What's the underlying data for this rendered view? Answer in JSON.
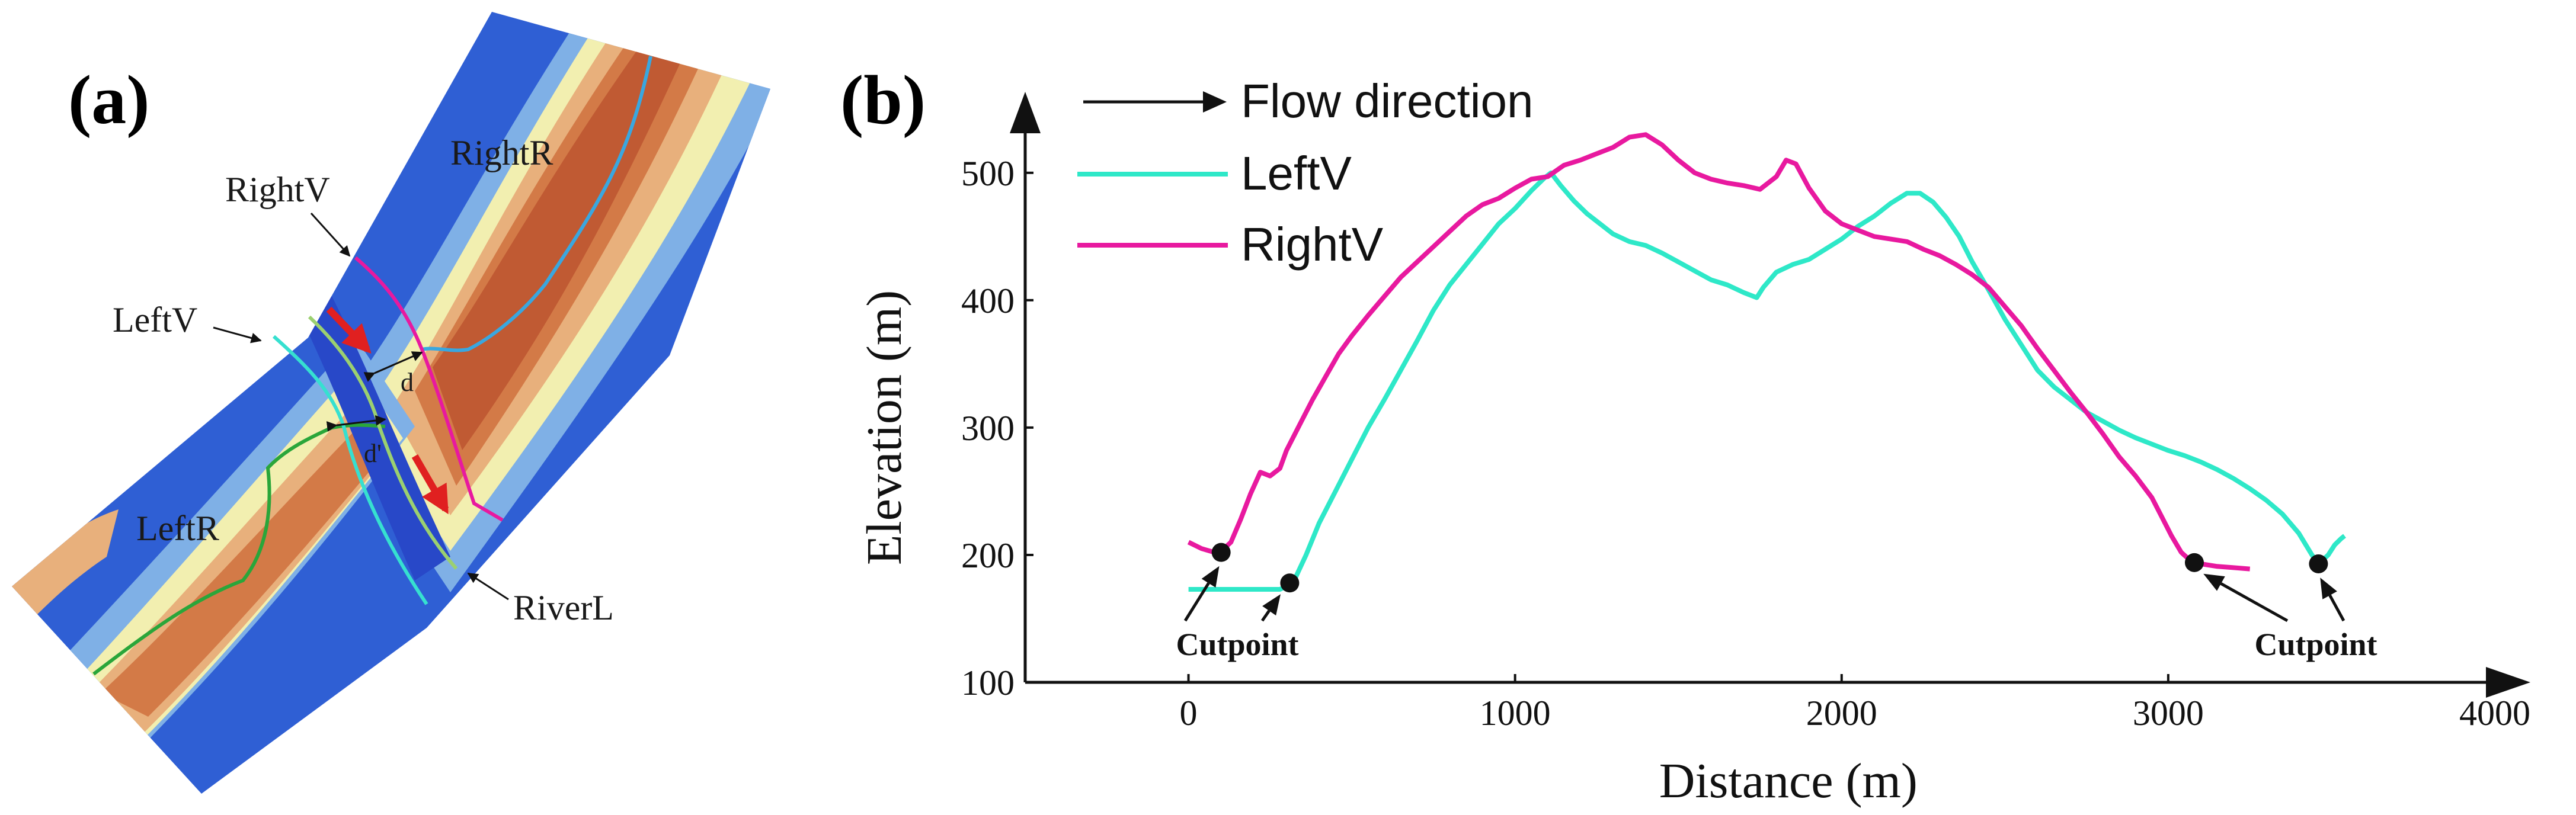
{
  "panel_a": {
    "label": "(a)",
    "map_labels": {
      "right_v": "RightV",
      "right_r": "RightR",
      "left_v": "LeftV",
      "left_r": "LeftR",
      "river_l": "RiverL",
      "d": "d",
      "d_prime": "d'"
    }
  },
  "panel_b": {
    "label": "(b)"
  },
  "chart_data": {
    "type": "line",
    "title": "",
    "xlabel": "Distance (m)",
    "ylabel": "Elevation (m)",
    "xlim": [
      -500,
      4000
    ],
    "ylim": [
      100,
      545
    ],
    "xticks": [
      0,
      1000,
      2000,
      3000,
      4000
    ],
    "yticks": [
      100,
      200,
      300,
      400,
      500
    ],
    "legend": {
      "flow_direction": "Flow direction",
      "placement": "top-left"
    },
    "series": [
      {
        "name": "LeftV",
        "color": "#2ee8c8",
        "points": [
          [
            0,
            173
          ],
          [
            100,
            173
          ],
          [
            200,
            173
          ],
          [
            280,
            173
          ],
          [
            320,
            178
          ],
          [
            360,
            200
          ],
          [
            400,
            225
          ],
          [
            450,
            250
          ],
          [
            500,
            275
          ],
          [
            550,
            300
          ],
          [
            600,
            322
          ],
          [
            650,
            345
          ],
          [
            700,
            368
          ],
          [
            750,
            392
          ],
          [
            800,
            412
          ],
          [
            850,
            428
          ],
          [
            900,
            444
          ],
          [
            950,
            460
          ],
          [
            1000,
            472
          ],
          [
            1050,
            486
          ],
          [
            1090,
            496
          ],
          [
            1110,
            500
          ],
          [
            1140,
            490
          ],
          [
            1180,
            478
          ],
          [
            1220,
            468
          ],
          [
            1260,
            460
          ],
          [
            1300,
            452
          ],
          [
            1350,
            446
          ],
          [
            1400,
            443
          ],
          [
            1450,
            437
          ],
          [
            1500,
            430
          ],
          [
            1550,
            423
          ],
          [
            1600,
            416
          ],
          [
            1650,
            412
          ],
          [
            1700,
            406
          ],
          [
            1740,
            402
          ],
          [
            1760,
            410
          ],
          [
            1800,
            422
          ],
          [
            1850,
            428
          ],
          [
            1900,
            432
          ],
          [
            1950,
            440
          ],
          [
            2000,
            448
          ],
          [
            2050,
            458
          ],
          [
            2100,
            466
          ],
          [
            2150,
            476
          ],
          [
            2200,
            484
          ],
          [
            2240,
            484
          ],
          [
            2280,
            477
          ],
          [
            2320,
            465
          ],
          [
            2360,
            450
          ],
          [
            2400,
            430
          ],
          [
            2450,
            408
          ],
          [
            2500,
            385
          ],
          [
            2550,
            365
          ],
          [
            2600,
            345
          ],
          [
            2650,
            332
          ],
          [
            2700,
            322
          ],
          [
            2750,
            312
          ],
          [
            2800,
            305
          ],
          [
            2850,
            298
          ],
          [
            2900,
            292
          ],
          [
            2950,
            287
          ],
          [
            3000,
            282
          ],
          [
            3050,
            278
          ],
          [
            3100,
            273
          ],
          [
            3150,
            267
          ],
          [
            3200,
            260
          ],
          [
            3250,
            252
          ],
          [
            3300,
            243
          ],
          [
            3350,
            232
          ],
          [
            3400,
            217
          ],
          [
            3440,
            200
          ],
          [
            3460,
            193
          ],
          [
            3490,
            200
          ],
          [
            3510,
            208
          ],
          [
            3530,
            213
          ],
          [
            3540,
            215
          ]
        ]
      },
      {
        "name": "RightV",
        "color": "#e8199f",
        "points": [
          [
            0,
            210
          ],
          [
            40,
            205
          ],
          [
            80,
            202
          ],
          [
            100,
            203
          ],
          [
            130,
            210
          ],
          [
            160,
            228
          ],
          [
            190,
            248
          ],
          [
            220,
            265
          ],
          [
            250,
            262
          ],
          [
            280,
            268
          ],
          [
            300,
            282
          ],
          [
            340,
            302
          ],
          [
            380,
            322
          ],
          [
            420,
            340
          ],
          [
            460,
            358
          ],
          [
            500,
            372
          ],
          [
            550,
            388
          ],
          [
            600,
            403
          ],
          [
            650,
            418
          ],
          [
            700,
            430
          ],
          [
            750,
            442
          ],
          [
            800,
            454
          ],
          [
            850,
            466
          ],
          [
            900,
            475
          ],
          [
            950,
            480
          ],
          [
            1000,
            488
          ],
          [
            1050,
            495
          ],
          [
            1100,
            497
          ],
          [
            1150,
            506
          ],
          [
            1200,
            510
          ],
          [
            1250,
            515
          ],
          [
            1300,
            520
          ],
          [
            1350,
            528
          ],
          [
            1400,
            530
          ],
          [
            1450,
            522
          ],
          [
            1500,
            510
          ],
          [
            1550,
            500
          ],
          [
            1600,
            495
          ],
          [
            1650,
            492
          ],
          [
            1700,
            490
          ],
          [
            1750,
            487
          ],
          [
            1800,
            497
          ],
          [
            1830,
            510
          ],
          [
            1860,
            507
          ],
          [
            1900,
            488
          ],
          [
            1950,
            470
          ],
          [
            2000,
            460
          ],
          [
            2050,
            455
          ],
          [
            2100,
            450
          ],
          [
            2150,
            448
          ],
          [
            2200,
            446
          ],
          [
            2250,
            440
          ],
          [
            2300,
            435
          ],
          [
            2350,
            428
          ],
          [
            2400,
            420
          ],
          [
            2450,
            410
          ],
          [
            2500,
            395
          ],
          [
            2550,
            380
          ],
          [
            2600,
            362
          ],
          [
            2650,
            345
          ],
          [
            2700,
            328
          ],
          [
            2750,
            312
          ],
          [
            2800,
            295
          ],
          [
            2850,
            277
          ],
          [
            2900,
            262
          ],
          [
            2950,
            245
          ],
          [
            2980,
            230
          ],
          [
            3010,
            215
          ],
          [
            3040,
            202
          ],
          [
            3070,
            195
          ],
          [
            3100,
            193
          ],
          [
            3150,
            191
          ],
          [
            3200,
            190
          ],
          [
            3250,
            189
          ]
        ]
      }
    ],
    "annotations": {
      "cutpoint_label": "Cutpoint",
      "cutpoints": [
        [
          100,
          202
        ],
        [
          310,
          178
        ],
        [
          3080,
          194
        ],
        [
          3460,
          193
        ]
      ]
    }
  }
}
